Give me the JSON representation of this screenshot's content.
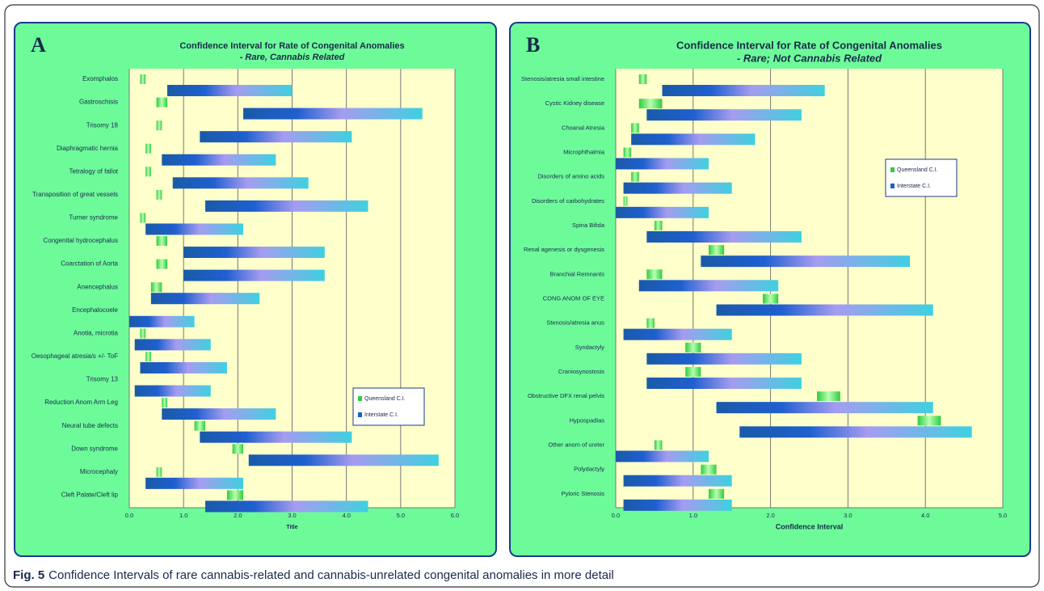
{
  "chart_data": [
    {
      "type": "rangebar",
      "panel": "A",
      "title": "Confidence Interval for Rate of Congenital Anomalies",
      "subtitle": "- Rare, Cannabis Related",
      "x_label": "Title",
      "categories": [
        "Exomphalos",
        "Gastroschisis",
        "Trisomy 18",
        "Diaphragmatic hernia",
        "Tetralogy of fallot",
        "Transposition of great vessels",
        "Turner syndrome",
        "Congenital hydrocephalus",
        "Coarctation of Aorta",
        "Anencephalus",
        "Encephalocoele",
        "Anotia, microtia",
        "Oesophageal atresia/s +/- ToF",
        "Trisomy 13",
        "Reduction Anom Arm Leg",
        "Neural tube defects",
        "Down syndrome",
        "Microcephaly",
        "Cleft Palate/Cleft lip"
      ],
      "series": [
        {
          "name": "Queensland C.I.",
          "color": "#2ecc40",
          "low": [
            0.2,
            0.5,
            0.5,
            0.3,
            0.3,
            0.5,
            0.2,
            0.5,
            0.5,
            0.4,
            null,
            0.2,
            0.3,
            null,
            0.6,
            1.2,
            1.9,
            0.5,
            1.8
          ],
          "high": [
            0.3,
            0.7,
            0.6,
            0.4,
            0.4,
            0.6,
            0.3,
            0.7,
            0.7,
            0.6,
            null,
            0.3,
            0.4,
            null,
            0.7,
            1.4,
            2.1,
            0.6,
            2.1
          ]
        },
        {
          "name": "Interstate C.I.",
          "color": "#1f5fd0",
          "low": [
            0.7,
            2.1,
            1.3,
            0.6,
            0.8,
            1.4,
            0.3,
            1.0,
            1.0,
            0.4,
            0.0,
            0.1,
            0.2,
            0.1,
            0.6,
            1.3,
            2.2,
            0.3,
            1.4
          ],
          "high": [
            3.0,
            5.4,
            4.1,
            2.7,
            3.3,
            4.4,
            2.1,
            3.6,
            3.6,
            2.4,
            1.2,
            1.5,
            1.8,
            1.5,
            2.7,
            4.1,
            5.7,
            2.1,
            4.4
          ]
        }
      ],
      "xlim": [
        0,
        6
      ],
      "xticks": [
        {
          "value": 0,
          "label": "0.0"
        },
        {
          "value": 1,
          "label": "1.0"
        },
        {
          "value": 2,
          "label": "2.0"
        },
        {
          "value": 3,
          "label": "3.0"
        },
        {
          "value": 4,
          "label": "4.0"
        },
        {
          "value": 5,
          "label": "5.0"
        },
        {
          "value": 6,
          "label": "6.0"
        }
      ],
      "grid": true
    },
    {
      "type": "rangebar",
      "panel": "B",
      "title": "Confidence Interval for Rate of Congenital Anomalies",
      "subtitle": "- Rare; Not Cannabis Related",
      "x_label": "Confidence Interval",
      "categories": [
        "Stenosis/atresia small intestine",
        "Cystic Kidney disease",
        "Choanal Atresia",
        "Microphthalmia",
        "Disorders of amino acids",
        "Disorders of carbohydrates",
        "Spina Bifida",
        "Renal agenesis or dysgenesis",
        "Branchial Remnants",
        "CONG ANOM OF EYE",
        "Stenosis/atresia anus",
        "Syndactyly",
        "Craniosynostosis",
        "Obstructive DFX renal pelvis",
        "Hypospadias",
        "Other anom of ureter",
        "Polydactyly",
        "Pyloric Stenosis"
      ],
      "series": [
        {
          "name": "Queensland C.I.",
          "color": "#2ecc40",
          "low": [
            0.3,
            0.3,
            0.2,
            0.1,
            0.2,
            0.1,
            0.5,
            1.2,
            0.4,
            1.9,
            0.4,
            0.9,
            0.9,
            2.6,
            3.9,
            0.5,
            1.1,
            1.2
          ],
          "high": [
            0.4,
            0.6,
            0.3,
            0.2,
            0.3,
            0.15,
            0.6,
            1.4,
            0.6,
            2.1,
            0.5,
            1.1,
            1.1,
            2.9,
            4.2,
            0.6,
            1.3,
            1.4
          ]
        },
        {
          "name": "Interstate C.I.",
          "color": "#1f5fd0",
          "low": [
            0.6,
            0.4,
            0.2,
            0.0,
            0.1,
            0.0,
            0.4,
            1.1,
            0.3,
            1.3,
            0.1,
            0.4,
            0.4,
            1.3,
            1.6,
            0.0,
            0.1,
            0.1
          ],
          "high": [
            2.7,
            2.4,
            1.8,
            1.2,
            1.5,
            1.2,
            2.4,
            3.8,
            2.1,
            4.1,
            1.5,
            2.4,
            2.4,
            4.1,
            4.6,
            1.2,
            1.5,
            1.5
          ]
        }
      ],
      "xlim": [
        0,
        5
      ],
      "xticks": [
        {
          "value": 0,
          "label": "0.0"
        },
        {
          "value": 1,
          "label": "1.0"
        },
        {
          "value": 2,
          "label": "2.0"
        },
        {
          "value": 3,
          "label": "3.0"
        },
        {
          "value": 4,
          "label": "4.0"
        },
        {
          "value": 5,
          "label": "5.0"
        }
      ],
      "grid": true
    }
  ],
  "caption": {
    "label": "Fig. 5",
    "text": "Confidence Intervals of rare cannabis-related and cannabis-unrelated congenital anomalies in more detail"
  }
}
